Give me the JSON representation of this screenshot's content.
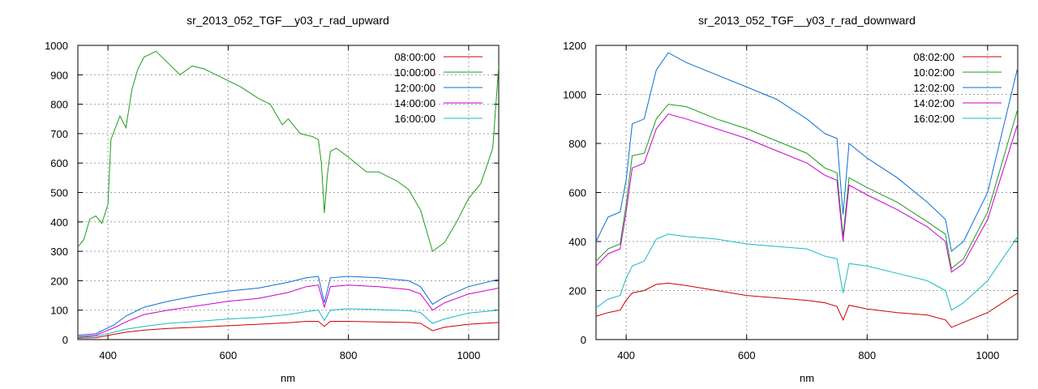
{
  "chart_data": [
    {
      "type": "line",
      "title": "sr_2013_052_TGF__y03_r_rad_upward",
      "xlabel": "nm",
      "ylabel": "",
      "xlim": [
        350,
        1050
      ],
      "ylim": [
        0,
        1000
      ],
      "xticks": [
        400,
        600,
        800,
        1000
      ],
      "yticks": [
        0,
        100,
        200,
        300,
        400,
        500,
        600,
        700,
        800,
        900,
        1000
      ],
      "grid": true,
      "legend": "top-right",
      "series": [
        {
          "name": "08:00:00",
          "color": "#cc0000",
          "x": [
            350,
            380,
            410,
            430,
            460,
            500,
            550,
            600,
            650,
            700,
            730,
            750,
            760,
            770,
            800,
            850,
            900,
            920,
            940,
            960,
            1000,
            1050
          ],
          "y": [
            5,
            6,
            18,
            25,
            32,
            38,
            42,
            47,
            52,
            57,
            62,
            62,
            45,
            62,
            62,
            60,
            58,
            55,
            30,
            42,
            52,
            58
          ]
        },
        {
          "name": "10:00:00",
          "color": "#1b9c1b",
          "x": [
            350,
            360,
            370,
            380,
            390,
            400,
            405,
            420,
            430,
            440,
            450,
            460,
            470,
            480,
            500,
            520,
            540,
            560,
            600,
            620,
            650,
            670,
            690,
            700,
            720,
            740,
            750,
            755,
            760,
            765,
            770,
            780,
            800,
            830,
            850,
            880,
            900,
            920,
            940,
            960,
            980,
            1000,
            1020,
            1040,
            1050
          ],
          "y": [
            315,
            340,
            410,
            420,
            395,
            460,
            680,
            760,
            720,
            850,
            920,
            960,
            970,
            980,
            940,
            900,
            930,
            920,
            880,
            860,
            820,
            800,
            730,
            750,
            700,
            690,
            680,
            600,
            430,
            560,
            640,
            650,
            620,
            570,
            570,
            540,
            510,
            440,
            300,
            330,
            400,
            480,
            530,
            650,
            930
          ]
        },
        {
          "name": "12:00:00",
          "color": "#0a6fd4",
          "x": [
            350,
            380,
            410,
            430,
            460,
            500,
            550,
            600,
            650,
            700,
            730,
            750,
            760,
            770,
            800,
            850,
            900,
            920,
            940,
            960,
            1000,
            1050
          ],
          "y": [
            15,
            20,
            50,
            80,
            110,
            130,
            150,
            165,
            175,
            195,
            210,
            215,
            125,
            210,
            215,
            210,
            200,
            180,
            120,
            145,
            180,
            205
          ]
        },
        {
          "name": "14:00:00",
          "color": "#cc00cc",
          "x": [
            350,
            380,
            410,
            430,
            460,
            500,
            550,
            600,
            650,
            700,
            730,
            750,
            760,
            770,
            800,
            850,
            900,
            920,
            940,
            960,
            1000,
            1050
          ],
          "y": [
            10,
            15,
            40,
            60,
            85,
            100,
            115,
            130,
            140,
            160,
            180,
            185,
            110,
            180,
            185,
            180,
            170,
            155,
            100,
            125,
            155,
            175
          ]
        },
        {
          "name": "16:00:00",
          "color": "#1ab8c8",
          "x": [
            350,
            380,
            410,
            430,
            460,
            500,
            550,
            600,
            650,
            700,
            730,
            750,
            760,
            770,
            800,
            850,
            900,
            920,
            940,
            960,
            1000,
            1050
          ],
          "y": [
            8,
            11,
            25,
            35,
            45,
            55,
            62,
            70,
            75,
            85,
            95,
            100,
            65,
            100,
            105,
            102,
            98,
            92,
            55,
            70,
            90,
            100
          ]
        }
      ]
    },
    {
      "type": "line",
      "title": "sr_2013_052_TGF__y03_r_rad_downward",
      "xlabel": "nm",
      "ylabel": "",
      "xlim": [
        350,
        1050
      ],
      "ylim": [
        0,
        1200
      ],
      "xticks": [
        400,
        600,
        800,
        1000
      ],
      "yticks": [
        0,
        200,
        400,
        600,
        800,
        1000,
        1200
      ],
      "grid": true,
      "legend": "top-right",
      "series": [
        {
          "name": "08:02:00",
          "color": "#cc0000",
          "x": [
            350,
            370,
            390,
            400,
            410,
            430,
            450,
            470,
            500,
            550,
            600,
            650,
            700,
            730,
            750,
            760,
            770,
            800,
            850,
            900,
            930,
            940,
            960,
            1000,
            1050
          ],
          "y": [
            95,
            110,
            120,
            160,
            190,
            200,
            225,
            230,
            220,
            200,
            180,
            170,
            160,
            150,
            135,
            80,
            140,
            125,
            110,
            100,
            80,
            50,
            70,
            110,
            190
          ]
        },
        {
          "name": "10:02:00",
          "color": "#1b9c1b",
          "x": [
            350,
            370,
            390,
            400,
            410,
            430,
            450,
            470,
            500,
            550,
            600,
            650,
            700,
            730,
            750,
            760,
            770,
            800,
            850,
            900,
            930,
            940,
            960,
            1000,
            1050
          ],
          "y": [
            320,
            370,
            390,
            550,
            750,
            760,
            900,
            960,
            950,
            900,
            860,
            810,
            760,
            700,
            680,
            420,
            660,
            620,
            560,
            480,
            430,
            290,
            330,
            520,
            940
          ]
        },
        {
          "name": "12:02:00",
          "color": "#0a6fd4",
          "x": [
            350,
            370,
            390,
            400,
            410,
            430,
            450,
            470,
            500,
            550,
            600,
            650,
            700,
            730,
            750,
            760,
            770,
            800,
            850,
            900,
            930,
            940,
            960,
            1000,
            1050
          ],
          "y": [
            400,
            500,
            520,
            650,
            880,
            900,
            1100,
            1170,
            1130,
            1080,
            1030,
            980,
            900,
            840,
            820,
            510,
            800,
            740,
            660,
            560,
            490,
            360,
            400,
            600,
            1110
          ]
        },
        {
          "name": "14:02:00",
          "color": "#cc00cc",
          "x": [
            350,
            370,
            390,
            400,
            410,
            430,
            450,
            470,
            500,
            550,
            600,
            650,
            700,
            730,
            750,
            760,
            770,
            800,
            850,
            900,
            930,
            940,
            960,
            1000,
            1050
          ],
          "y": [
            300,
            350,
            370,
            520,
            700,
            720,
            860,
            920,
            900,
            860,
            820,
            770,
            720,
            670,
            650,
            400,
            630,
            590,
            530,
            460,
            400,
            275,
            310,
            490,
            880
          ]
        },
        {
          "name": "16:02:00",
          "color": "#1ab8c8",
          "x": [
            350,
            370,
            390,
            400,
            410,
            430,
            450,
            470,
            500,
            550,
            600,
            650,
            700,
            730,
            750,
            760,
            770,
            800,
            850,
            900,
            930,
            940,
            960,
            1000,
            1050
          ],
          "y": [
            130,
            165,
            180,
            250,
            300,
            320,
            410,
            430,
            420,
            410,
            390,
            380,
            370,
            340,
            330,
            190,
            310,
            300,
            270,
            240,
            200,
            120,
            150,
            240,
            420
          ]
        }
      ]
    }
  ]
}
